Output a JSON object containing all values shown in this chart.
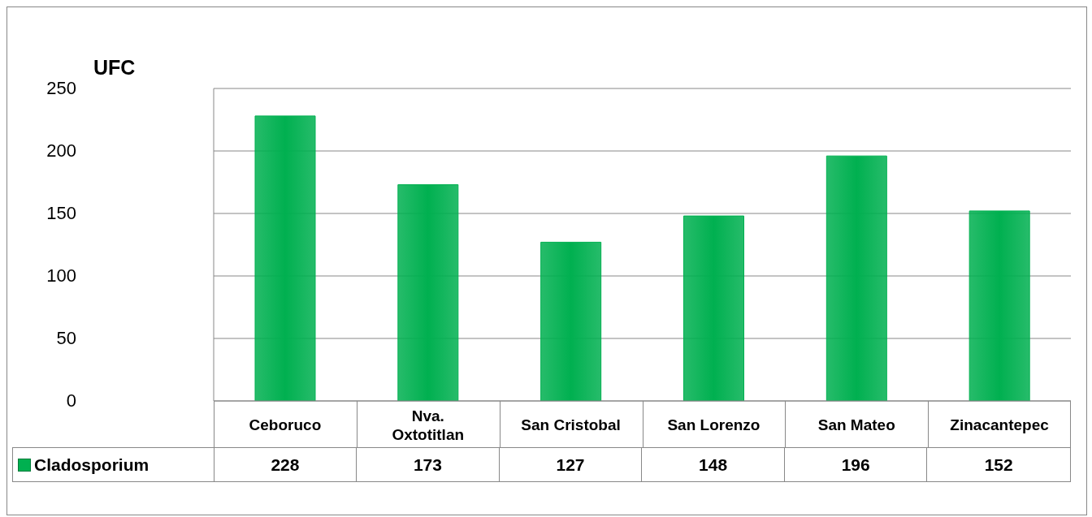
{
  "chart_data": {
    "type": "bar",
    "ylabel": "UFC",
    "categories": [
      "Ceboruco",
      "Nva. Oxtotitlan",
      "San Cristobal",
      "San Lorenzo",
      "San Mateo",
      "Zinacantepec"
    ],
    "series": [
      {
        "name": "Cladosporium",
        "color": "#00b050",
        "values": [
          228,
          173,
          127,
          148,
          196,
          152
        ]
      }
    ],
    "ylim": [
      0,
      250
    ],
    "yticks": [
      0,
      50,
      100,
      150,
      200,
      250
    ],
    "grid": "y",
    "legend": "bottom",
    "data_labels": true
  }
}
